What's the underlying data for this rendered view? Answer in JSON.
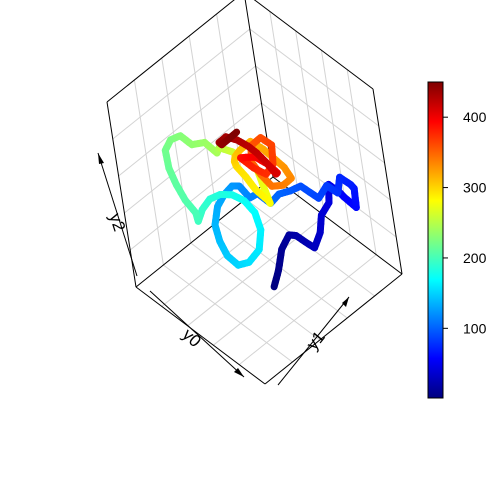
{
  "chart_data": {
    "type": "line",
    "title": "",
    "axes": {
      "x_label": "y0",
      "y_label": "y1",
      "z_label": "y2"
    },
    "colorbar": {
      "range": [
        1,
        450
      ],
      "ticks": [
        {
          "value": 100,
          "label": "100"
        },
        {
          "value": 200,
          "label": "200"
        },
        {
          "value": 300,
          "label": "300"
        },
        {
          "value": 400,
          "label": "400"
        }
      ],
      "palette": [
        "#00007F",
        "#0000FF",
        "#007FFF",
        "#00FFFF",
        "#7FFF7F",
        "#FFFF00",
        "#FF7F00",
        "#FF0000",
        "#7F0000"
      ]
    },
    "grid": true,
    "box": true,
    "series": [
      {
        "color_variable": "time index",
        "points": [
          [
            0.78,
            0.32,
            0.22
          ],
          [
            0.8,
            0.35,
            0.3
          ],
          [
            0.79,
            0.4,
            0.38
          ],
          [
            0.82,
            0.44,
            0.45
          ],
          [
            0.8,
            0.5,
            0.4
          ],
          [
            0.83,
            0.55,
            0.34
          ],
          [
            0.81,
            0.6,
            0.28
          ],
          [
            0.84,
            0.63,
            0.36
          ],
          [
            0.82,
            0.67,
            0.42
          ],
          [
            0.85,
            0.71,
            0.48
          ],
          [
            0.83,
            0.74,
            0.55
          ],
          [
            0.86,
            0.78,
            0.5
          ],
          [
            0.84,
            0.82,
            0.44
          ],
          [
            0.88,
            0.86,
            0.38
          ],
          [
            0.86,
            0.88,
            0.46
          ],
          [
            0.89,
            0.84,
            0.52
          ],
          [
            0.87,
            0.79,
            0.58
          ],
          [
            0.9,
            0.74,
            0.54
          ],
          [
            0.88,
            0.69,
            0.6
          ],
          [
            0.86,
            0.64,
            0.55
          ],
          [
            0.8,
            0.58,
            0.62
          ],
          [
            0.74,
            0.55,
            0.58
          ],
          [
            0.68,
            0.52,
            0.55
          ],
          [
            0.62,
            0.5,
            0.48
          ],
          [
            0.56,
            0.47,
            0.52
          ],
          [
            0.5,
            0.46,
            0.47
          ],
          [
            0.45,
            0.44,
            0.52
          ],
          [
            0.4,
            0.43,
            0.5
          ],
          [
            0.36,
            0.4,
            0.45
          ],
          [
            0.34,
            0.36,
            0.4
          ],
          [
            0.36,
            0.31,
            0.34
          ],
          [
            0.42,
            0.28,
            0.3
          ],
          [
            0.48,
            0.27,
            0.26
          ],
          [
            0.55,
            0.28,
            0.24
          ],
          [
            0.62,
            0.3,
            0.28
          ],
          [
            0.66,
            0.35,
            0.34
          ],
          [
            0.62,
            0.41,
            0.39
          ],
          [
            0.55,
            0.44,
            0.43
          ],
          [
            0.46,
            0.45,
            0.44
          ],
          [
            0.36,
            0.45,
            0.42
          ],
          [
            0.27,
            0.44,
            0.38
          ],
          [
            0.2,
            0.42,
            0.33
          ],
          [
            0.16,
            0.39,
            0.27
          ],
          [
            0.15,
            0.36,
            0.22
          ],
          [
            0.18,
            0.33,
            0.3
          ],
          [
            0.16,
            0.29,
            0.38
          ],
          [
            0.13,
            0.27,
            0.46
          ],
          [
            0.1,
            0.26,
            0.54
          ],
          [
            0.08,
            0.27,
            0.62
          ],
          [
            0.1,
            0.3,
            0.67
          ],
          [
            0.15,
            0.33,
            0.7
          ],
          [
            0.2,
            0.36,
            0.66
          ],
          [
            0.26,
            0.4,
            0.68
          ],
          [
            0.3,
            0.44,
            0.62
          ],
          [
            0.26,
            0.49,
            0.6
          ],
          [
            0.22,
            0.53,
            0.55
          ],
          [
            0.2,
            0.58,
            0.5
          ],
          [
            0.18,
            0.63,
            0.45
          ],
          [
            0.22,
            0.67,
            0.4
          ],
          [
            0.28,
            0.7,
            0.36
          ],
          [
            0.34,
            0.68,
            0.31
          ],
          [
            0.4,
            0.66,
            0.27
          ],
          [
            0.44,
            0.62,
            0.33
          ],
          [
            0.4,
            0.58,
            0.39
          ],
          [
            0.36,
            0.56,
            0.45
          ],
          [
            0.33,
            0.53,
            0.51
          ],
          [
            0.36,
            0.5,
            0.57
          ],
          [
            0.4,
            0.48,
            0.63
          ],
          [
            0.45,
            0.48,
            0.69
          ],
          [
            0.5,
            0.52,
            0.74
          ],
          [
            0.55,
            0.56,
            0.7
          ],
          [
            0.58,
            0.6,
            0.64
          ],
          [
            0.6,
            0.64,
            0.58
          ],
          [
            0.62,
            0.66,
            0.52
          ],
          [
            0.58,
            0.63,
            0.48
          ],
          [
            0.52,
            0.6,
            0.46
          ],
          [
            0.48,
            0.57,
            0.52
          ],
          [
            0.44,
            0.55,
            0.58
          ],
          [
            0.42,
            0.58,
            0.64
          ],
          [
            0.46,
            0.62,
            0.68
          ],
          [
            0.52,
            0.64,
            0.66
          ],
          [
            0.56,
            0.6,
            0.6
          ],
          [
            0.54,
            0.56,
            0.56
          ],
          [
            0.48,
            0.53,
            0.58
          ],
          [
            0.44,
            0.5,
            0.62
          ],
          [
            0.46,
            0.47,
            0.66
          ],
          [
            0.52,
            0.46,
            0.7
          ],
          [
            0.58,
            0.48,
            0.72
          ],
          [
            0.62,
            0.52,
            0.68
          ],
          [
            0.64,
            0.56,
            0.62
          ],
          [
            0.6,
            0.58,
            0.58
          ],
          [
            0.54,
            0.57,
            0.62
          ],
          [
            0.5,
            0.55,
            0.66
          ],
          [
            0.47,
            0.52,
            0.7
          ],
          [
            0.44,
            0.48,
            0.74
          ],
          [
            0.4,
            0.44,
            0.76
          ],
          [
            0.36,
            0.42,
            0.72
          ],
          [
            0.34,
            0.45,
            0.68
          ],
          [
            0.38,
            0.48,
            0.72
          ],
          [
            0.42,
            0.5,
            0.76
          ]
        ]
      }
    ]
  }
}
